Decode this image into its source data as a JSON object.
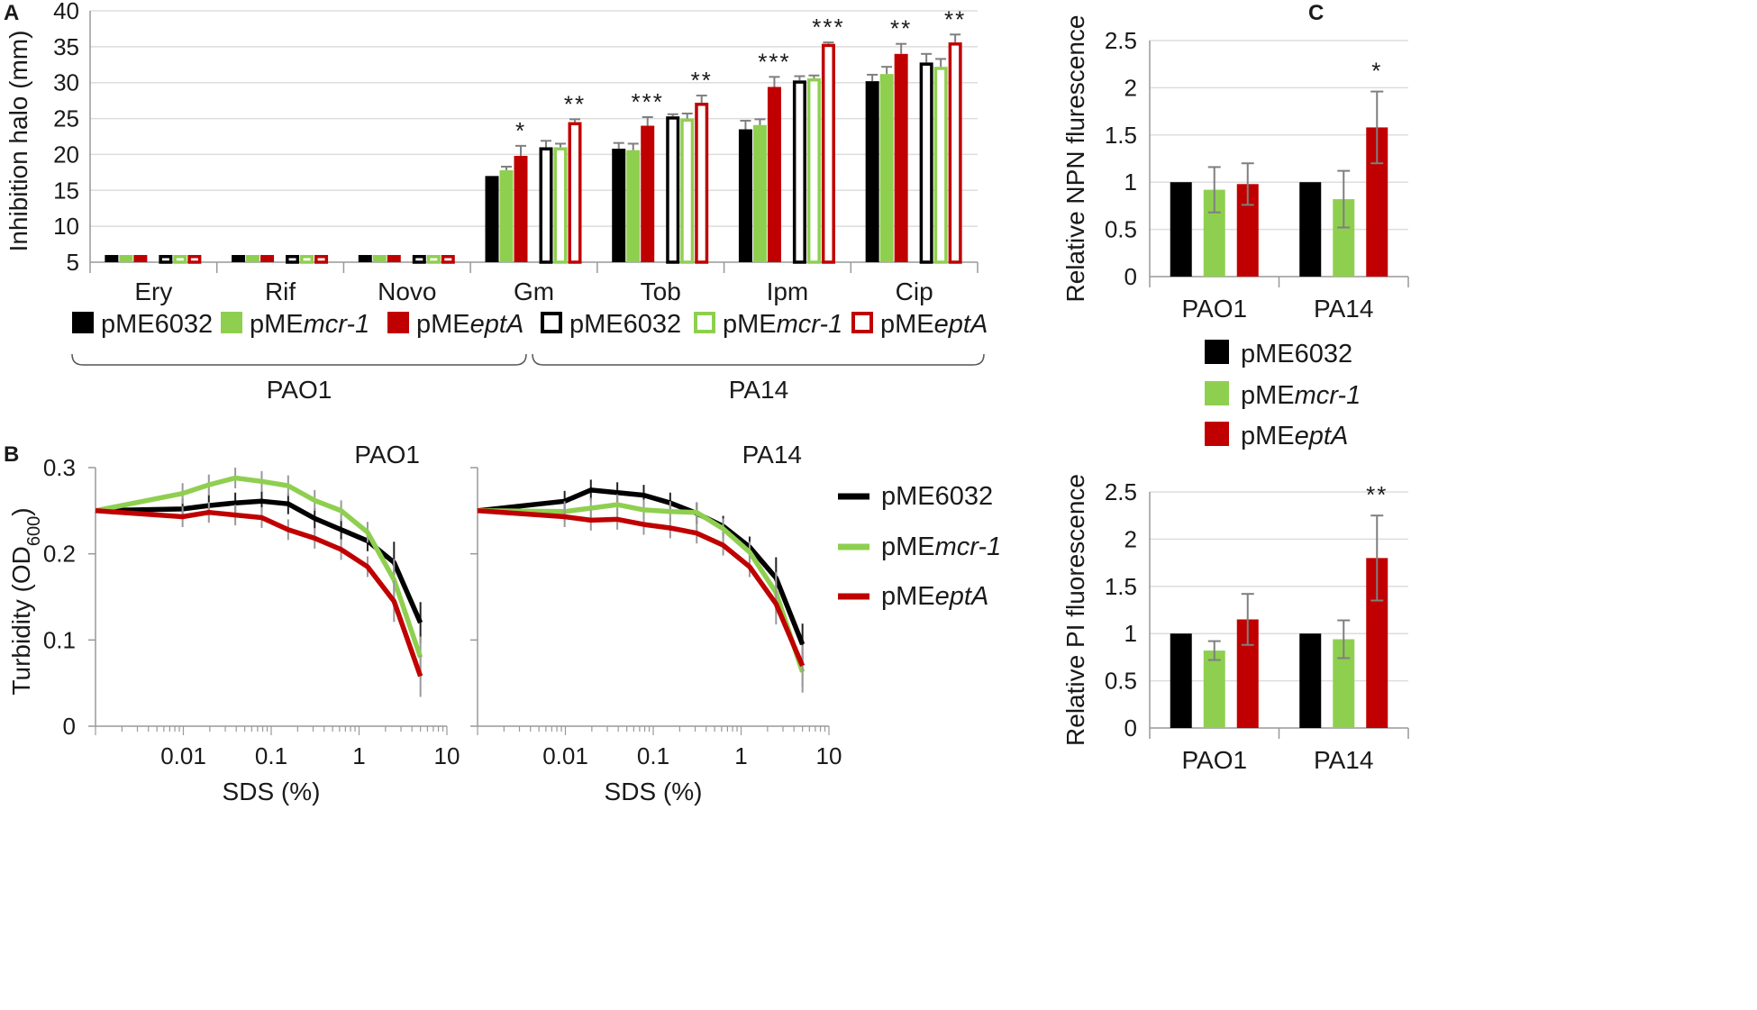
{
  "colors": {
    "pME6032": "#000000",
    "pMEmcr1": "#8fcf50",
    "pMEeptA": "#c00000",
    "grid": "#dddddd",
    "axis": "#999999",
    "err": "#7f7f7f"
  },
  "legend_series": [
    {
      "prefix": "pME",
      "italic": "6032_",
      "key": "pME6032"
    }
  ],
  "chart_data": [
    {
      "panel": "A",
      "type": "bar",
      "ylabel": "Inhibition halo (mm)",
      "ylim": [
        5,
        40
      ],
      "yticks": [
        "5",
        "10",
        "15",
        "20",
        "25",
        "30",
        "35",
        "40"
      ],
      "categories": [
        "Ery",
        "Rif",
        "Novo",
        "Gm",
        "Tob",
        "Ipm",
        "Cip"
      ],
      "strain_labels": [
        "PAO1",
        "PA14"
      ],
      "legend": [
        {
          "prefix": "pME",
          "italic": "",
          "plain": "pME6032",
          "color": "#000000",
          "style": "solid"
        },
        {
          "prefix": "pME",
          "italic": "mcr-1",
          "color": "#8fcf50",
          "style": "solid"
        },
        {
          "prefix": "pME",
          "italic": "eptA",
          "color": "#c00000",
          "style": "solid"
        },
        {
          "prefix": "pME",
          "italic": "",
          "plain": "pME6032",
          "color": "#000000",
          "style": "open"
        },
        {
          "prefix": "pME",
          "italic": "mcr-1",
          "color": "#8fcf50",
          "style": "open"
        },
        {
          "prefix": "pME",
          "italic": "eptA",
          "color": "#c00000",
          "style": "open"
        }
      ],
      "series": [
        {
          "name": "PAO1 pME6032",
          "strain": "PAO1",
          "color": "#000000",
          "style": "solid",
          "values": [
            6,
            6,
            6,
            17,
            20.8,
            23.5,
            30.2
          ],
          "errors": [
            0,
            0,
            0,
            0,
            0.8,
            1.2,
            0.9
          ]
        },
        {
          "name": "PAO1 pMEmcr-1",
          "strain": "PAO1",
          "color": "#8fcf50",
          "style": "solid",
          "values": [
            6,
            6,
            6,
            17.8,
            20.6,
            24.1,
            31.2
          ],
          "errors": [
            0,
            0,
            0,
            0.5,
            0.9,
            0.8,
            1.0
          ]
        },
        {
          "name": "PAO1 pMEeptA",
          "strain": "PAO1",
          "color": "#c00000",
          "style": "solid",
          "values": [
            6,
            6,
            6,
            19.8,
            24.0,
            29.4,
            34.0
          ],
          "errors": [
            0,
            0,
            0,
            1.4,
            1.2,
            1.4,
            1.4
          ]
        },
        {
          "name": "PA14 pME6032",
          "strain": "PA14",
          "color": "#000000",
          "style": "open",
          "values": [
            6,
            6,
            6,
            21.0,
            25.3,
            30.3,
            32.8
          ],
          "errors": [
            0,
            0,
            0,
            0.9,
            0.3,
            0.6,
            1.2
          ]
        },
        {
          "name": "PA14 pMEmcr-1",
          "strain": "PA14",
          "color": "#8fcf50",
          "style": "open",
          "values": [
            6,
            6,
            6,
            21.0,
            25.0,
            30.6,
            32.2
          ],
          "errors": [
            0,
            0,
            0,
            0.5,
            0.7,
            0.4,
            1.1
          ]
        },
        {
          "name": "PA14 pMEeptA",
          "strain": "PA14",
          "color": "#c00000",
          "style": "open",
          "values": [
            6,
            6,
            6,
            24.5,
            27.2,
            35.4,
            35.6
          ],
          "errors": [
            0,
            0,
            0,
            0.4,
            1.0,
            0.2,
            1.1
          ]
        }
      ],
      "significance": [
        {
          "category": "Gm",
          "label": "*"
        },
        {
          "category": "Gm",
          "label": "**"
        },
        {
          "category": "Tob",
          "label": "***"
        },
        {
          "category": "Tob",
          "label": "**"
        },
        {
          "category": "Ipm",
          "label": "***"
        },
        {
          "category": "Ipm",
          "label": "***"
        },
        {
          "category": "Cip",
          "label": "**"
        },
        {
          "category": "Cip",
          "label": "**"
        }
      ]
    },
    {
      "panel": "B",
      "type": "line",
      "ylabel": "Turbidity (OD",
      "ylabel_sub": "600",
      "ylabel_close": ")",
      "xlabel": "SDS (%)",
      "xscale": "log",
      "xlim": [
        0.001,
        10
      ],
      "ylim": [
        0,
        0.3
      ],
      "yticks": [
        "0",
        "0.1",
        "0.2",
        "0.3"
      ],
      "xticks": [
        "0.01",
        "0.1",
        "1",
        "10"
      ],
      "x": [
        0.001,
        0.0098,
        0.0195,
        0.039,
        0.078,
        0.156,
        0.3125,
        0.625,
        1.25,
        2.5,
        5
      ],
      "subplots": [
        {
          "title": "PAO1",
          "series": [
            {
              "name": "pME6032",
              "color": "#000000",
              "values": [
                0.25,
                0.252,
                0.256,
                0.259,
                0.261,
                0.258,
                0.241,
                0.228,
                0.215,
                0.19,
                0.12
              ]
            },
            {
              "name": "pMEmcr-1",
              "color": "#8fcf50",
              "values": [
                0.25,
                0.27,
                0.28,
                0.288,
                0.284,
                0.279,
                0.262,
                0.25,
                0.225,
                0.17,
                0.08
              ]
            },
            {
              "name": "pMEeptA",
              "color": "#c00000",
              "values": [
                0.25,
                0.243,
                0.248,
                0.245,
                0.242,
                0.228,
                0.218,
                0.205,
                0.185,
                0.145,
                0.058
              ]
            }
          ]
        },
        {
          "title": "PA14",
          "series": [
            {
              "name": "pME6032",
              "color": "#000000",
              "values": [
                0.25,
                0.261,
                0.274,
                0.271,
                0.268,
                0.259,
                0.247,
                0.232,
                0.208,
                0.172,
                0.095
              ]
            },
            {
              "name": "pMEmcr-1",
              "color": "#8fcf50",
              "values": [
                0.25,
                0.249,
                0.253,
                0.257,
                0.251,
                0.249,
                0.248,
                0.229,
                0.202,
                0.155,
                0.063
              ]
            },
            {
              "name": "pMEeptA",
              "color": "#c00000",
              "values": [
                0.25,
                0.243,
                0.239,
                0.24,
                0.234,
                0.23,
                0.224,
                0.21,
                0.185,
                0.142,
                0.07
              ]
            }
          ]
        }
      ],
      "legend": [
        {
          "prefix": "pME",
          "plain": "pME6032",
          "italic": "",
          "color": "#000000"
        },
        {
          "prefix": "pME",
          "italic": "mcr-1",
          "color": "#8fcf50"
        },
        {
          "prefix": "pME",
          "italic": "eptA",
          "color": "#c00000"
        }
      ]
    },
    {
      "panel": "C-top",
      "type": "bar",
      "ylabel": "Relative NPN flurescence",
      "ylim": [
        0,
        2.5
      ],
      "yticks": [
        "0",
        "0.5",
        "1",
        "1.5",
        "2",
        "2.5"
      ],
      "categories": [
        "PAO1",
        "PA14"
      ],
      "series": [
        {
          "name": "pME6032",
          "color": "#000000",
          "values": [
            1.0,
            1.0
          ],
          "errors": [
            0,
            0
          ]
        },
        {
          "name": "pMEmcr-1",
          "color": "#8fcf50",
          "values": [
            0.92,
            0.82
          ],
          "errors": [
            0.24,
            0.3
          ]
        },
        {
          "name": "pMEeptA",
          "color": "#c00000",
          "values": [
            0.98,
            1.58
          ],
          "errors": [
            0.22,
            0.38
          ]
        }
      ],
      "significance": [
        {
          "category": "PA14",
          "label": "*"
        }
      ]
    },
    {
      "panel": "C-bottom",
      "type": "bar",
      "ylabel": "Relative PI fluorescence",
      "ylim": [
        0,
        2.5
      ],
      "yticks": [
        "0",
        "0.5",
        "1",
        "1.5",
        "2",
        "2.5"
      ],
      "categories": [
        "PAO1",
        "PA14"
      ],
      "series": [
        {
          "name": "pME6032",
          "color": "#000000",
          "values": [
            1.0,
            1.0
          ],
          "errors": [
            0,
            0
          ]
        },
        {
          "name": "pMEmcr-1",
          "color": "#8fcf50",
          "values": [
            0.82,
            0.94
          ],
          "errors": [
            0.1,
            0.2
          ]
        },
        {
          "name": "pMEeptA",
          "color": "#c00000",
          "values": [
            1.15,
            1.8
          ],
          "errors": [
            0.27,
            0.45
          ]
        }
      ],
      "significance": [
        {
          "category": "PA14",
          "label": "**"
        }
      ],
      "legend": [
        {
          "prefix": "pME",
          "plain": "pME6032",
          "italic": "",
          "color": "#000000"
        },
        {
          "prefix": "pME",
          "italic": "mcr-1",
          "color": "#8fcf50"
        },
        {
          "prefix": "pME",
          "italic": "eptA",
          "color": "#c00000"
        }
      ]
    }
  ],
  "panel_letters": {
    "a": "A",
    "b": "B",
    "c": "C"
  }
}
